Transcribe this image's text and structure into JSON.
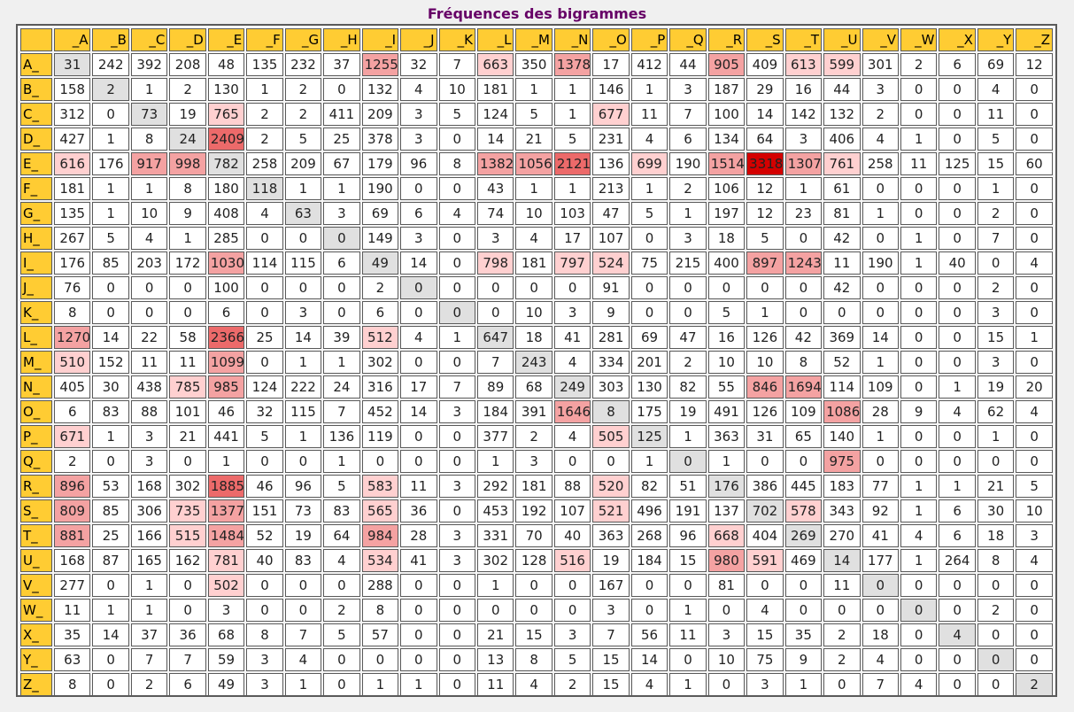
{
  "title": "Fréquences des bigrammes",
  "colors": {
    "header_bg": "#ffcc33",
    "title_color": "#660066",
    "diagonal_bg": "#e0e0e0",
    "cell_bg": "#ffffff",
    "heat_light": "#ffd0d0",
    "heat_mid": "#f4a2a2",
    "heat_high": "#ec6a6a",
    "heat_max": "#d40000"
  },
  "chart_data": {
    "type": "heatmap",
    "title": "Fréquences des bigrammes",
    "col_labels": [
      "_A",
      "_B",
      "_C",
      "_D",
      "_E",
      "_F",
      "_G",
      "_H",
      "_I",
      "_J",
      "_K",
      "_L",
      "_M",
      "_N",
      "_O",
      "_P",
      "_Q",
      "_R",
      "_S",
      "_T",
      "_U",
      "_V",
      "_W",
      "_X",
      "_Y",
      "_Z"
    ],
    "row_labels": [
      "A_",
      "B_",
      "C_",
      "D_",
      "E_",
      "F_",
      "G_",
      "H_",
      "I_",
      "J_",
      "K_",
      "L_",
      "M_",
      "N_",
      "O_",
      "P_",
      "Q_",
      "R_",
      "S_",
      "T_",
      "U_",
      "V_",
      "W_",
      "X_",
      "Y_",
      "Z_"
    ],
    "values": [
      [
        31,
        242,
        392,
        208,
        48,
        135,
        232,
        37,
        1255,
        32,
        7,
        663,
        350,
        1378,
        17,
        412,
        44,
        905,
        409,
        613,
        599,
        301,
        2,
        6,
        69,
        12
      ],
      [
        158,
        2,
        1,
        2,
        130,
        1,
        2,
        0,
        132,
        4,
        10,
        181,
        1,
        1,
        146,
        1,
        3,
        187,
        29,
        16,
        44,
        3,
        0,
        0,
        4,
        0
      ],
      [
        312,
        0,
        73,
        19,
        765,
        2,
        2,
        411,
        209,
        3,
        5,
        124,
        5,
        1,
        677,
        11,
        7,
        100,
        14,
        142,
        132,
        2,
        0,
        0,
        11,
        0
      ],
      [
        427,
        1,
        8,
        24,
        2409,
        2,
        5,
        25,
        378,
        3,
        0,
        14,
        21,
        5,
        231,
        4,
        6,
        134,
        64,
        3,
        406,
        4,
        1,
        0,
        5,
        0
      ],
      [
        616,
        176,
        917,
        998,
        782,
        258,
        209,
        67,
        179,
        96,
        8,
        1382,
        1056,
        2121,
        136,
        699,
        190,
        1514,
        3318,
        1307,
        761,
        258,
        11,
        125,
        15,
        60
      ],
      [
        181,
        1,
        1,
        8,
        180,
        118,
        1,
        1,
        190,
        0,
        0,
        43,
        1,
        1,
        213,
        1,
        2,
        106,
        12,
        1,
        61,
        0,
        0,
        0,
        1,
        0
      ],
      [
        135,
        1,
        10,
        9,
        408,
        4,
        63,
        3,
        69,
        6,
        4,
        74,
        10,
        103,
        47,
        5,
        1,
        197,
        12,
        23,
        81,
        1,
        0,
        0,
        2,
        0
      ],
      [
        267,
        5,
        4,
        1,
        285,
        0,
        0,
        0,
        149,
        3,
        0,
        3,
        4,
        17,
        107,
        0,
        3,
        18,
        5,
        0,
        42,
        0,
        1,
        0,
        7,
        0
      ],
      [
        176,
        85,
        203,
        172,
        1030,
        114,
        115,
        6,
        49,
        14,
        0,
        798,
        181,
        797,
        524,
        75,
        215,
        400,
        897,
        1243,
        11,
        190,
        1,
        40,
        0,
        4
      ],
      [
        76,
        0,
        0,
        0,
        100,
        0,
        0,
        0,
        2,
        0,
        0,
        0,
        0,
        0,
        91,
        0,
        0,
        0,
        0,
        0,
        42,
        0,
        0,
        0,
        2,
        0
      ],
      [
        8,
        0,
        0,
        0,
        6,
        0,
        3,
        0,
        6,
        0,
        0,
        0,
        10,
        3,
        9,
        0,
        0,
        5,
        1,
        0,
        0,
        0,
        0,
        0,
        3,
        0
      ],
      [
        1270,
        14,
        22,
        58,
        2366,
        25,
        14,
        39,
        512,
        4,
        1,
        647,
        18,
        41,
        281,
        69,
        47,
        16,
        126,
        42,
        369,
        14,
        0,
        0,
        15,
        1
      ],
      [
        510,
        152,
        11,
        11,
        1099,
        0,
        1,
        1,
        302,
        0,
        0,
        7,
        243,
        4,
        334,
        201,
        2,
        10,
        10,
        8,
        52,
        1,
        0,
        0,
        3,
        0
      ],
      [
        405,
        30,
        438,
        785,
        985,
        124,
        222,
        24,
        316,
        17,
        7,
        89,
        68,
        249,
        303,
        130,
        82,
        55,
        846,
        1694,
        114,
        109,
        0,
        1,
        19,
        20
      ],
      [
        6,
        83,
        88,
        101,
        46,
        32,
        115,
        7,
        452,
        14,
        3,
        184,
        391,
        1646,
        8,
        175,
        19,
        491,
        126,
        109,
        1086,
        28,
        9,
        4,
        62,
        4
      ],
      [
        671,
        1,
        3,
        21,
        441,
        5,
        1,
        136,
        119,
        0,
        0,
        377,
        2,
        4,
        505,
        125,
        1,
        363,
        31,
        65,
        140,
        1,
        0,
        0,
        1,
        0
      ],
      [
        2,
        0,
        3,
        0,
        1,
        0,
        0,
        1,
        0,
        0,
        0,
        1,
        3,
        0,
        0,
        1,
        0,
        1,
        0,
        0,
        975,
        0,
        0,
        0,
        0,
        0
      ],
      [
        896,
        53,
        168,
        302,
        1885,
        46,
        96,
        5,
        583,
        11,
        3,
        292,
        181,
        88,
        520,
        82,
        51,
        176,
        386,
        445,
        183,
        77,
        1,
        1,
        21,
        5
      ],
      [
        809,
        85,
        306,
        735,
        1377,
        151,
        73,
        83,
        565,
        36,
        0,
        453,
        192,
        107,
        521,
        496,
        191,
        137,
        702,
        578,
        343,
        92,
        1,
        6,
        30,
        10
      ],
      [
        881,
        25,
        166,
        515,
        1484,
        52,
        19,
        64,
        984,
        28,
        3,
        331,
        70,
        40,
        363,
        268,
        96,
        668,
        404,
        269,
        270,
        41,
        4,
        6,
        18,
        3
      ],
      [
        168,
        87,
        165,
        162,
        781,
        40,
        83,
        4,
        534,
        41,
        3,
        302,
        128,
        516,
        19,
        184,
        15,
        980,
        591,
        469,
        14,
        177,
        1,
        264,
        8,
        4
      ],
      [
        277,
        0,
        1,
        0,
        502,
        0,
        0,
        0,
        288,
        0,
        0,
        1,
        0,
        0,
        167,
        0,
        0,
        81,
        0,
        0,
        11,
        0,
        0,
        0,
        0,
        0
      ],
      [
        11,
        1,
        1,
        0,
        3,
        0,
        0,
        2,
        8,
        0,
        0,
        0,
        0,
        0,
        3,
        0,
        1,
        0,
        4,
        0,
        0,
        0,
        0,
        0,
        2,
        0
      ],
      [
        35,
        14,
        37,
        36,
        68,
        8,
        7,
        5,
        57,
        0,
        0,
        21,
        15,
        3,
        7,
        56,
        11,
        3,
        15,
        35,
        2,
        18,
        0,
        4,
        0,
        0
      ],
      [
        63,
        0,
        7,
        7,
        59,
        3,
        4,
        0,
        0,
        0,
        0,
        13,
        8,
        5,
        15,
        14,
        0,
        10,
        75,
        9,
        2,
        4,
        0,
        0,
        0,
        0
      ],
      [
        8,
        0,
        2,
        6,
        49,
        3,
        1,
        0,
        1,
        1,
        0,
        11,
        4,
        2,
        15,
        4,
        1,
        0,
        3,
        1,
        0,
        7,
        4,
        0,
        0,
        2
      ]
    ]
  }
}
